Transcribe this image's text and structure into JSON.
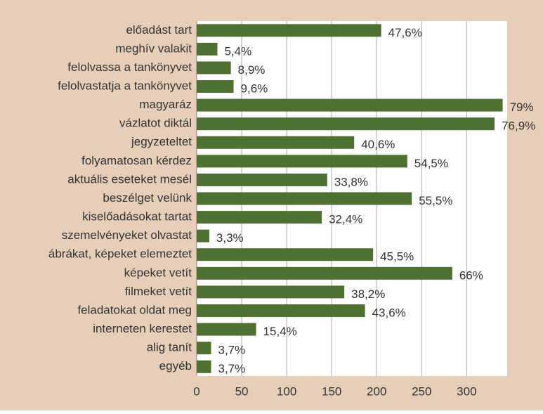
{
  "chart_data": {
    "type": "bar",
    "orientation": "horizontal",
    "categories": [
      "előadást tart",
      "meghív valakit",
      "felolvassa a tankönyvet",
      "felolvastatja a tankönyvet",
      "magyaráz",
      "vázlatot diktál",
      "jegyzeteltet",
      "folyamatosan kérdez",
      "aktuális eseteket mesél",
      "beszélget velünk",
      "kiselőadásokat tartat",
      "szemelvényeket olvastat",
      "ábrákat, képeket elemeztet",
      "képeket vetít",
      "filmeket vetít",
      "feladatokat oldat meg",
      "interneten kerestet",
      "alig tanít",
      "egyéb"
    ],
    "values": [
      205,
      23,
      38,
      41,
      340,
      331,
      175,
      234,
      145,
      239,
      139,
      14,
      196,
      284,
      164,
      187,
      66,
      16,
      16
    ],
    "value_labels": [
      "47,6%",
      "5,4%",
      "8,9%",
      "9,6%",
      "79%",
      "76,9%",
      "40,6%",
      "54,5%",
      "33,8%",
      "55,5%",
      "32,4%",
      "3,3%",
      "45,5%",
      "66%",
      "38,2%",
      "43,6%",
      "15,4%",
      "3,7%",
      "3,7%"
    ],
    "color": "#4e7132",
    "xlim": [
      0,
      345
    ],
    "xticks": [
      0,
      50,
      100,
      150,
      200,
      250,
      300
    ],
    "grid": true
  }
}
